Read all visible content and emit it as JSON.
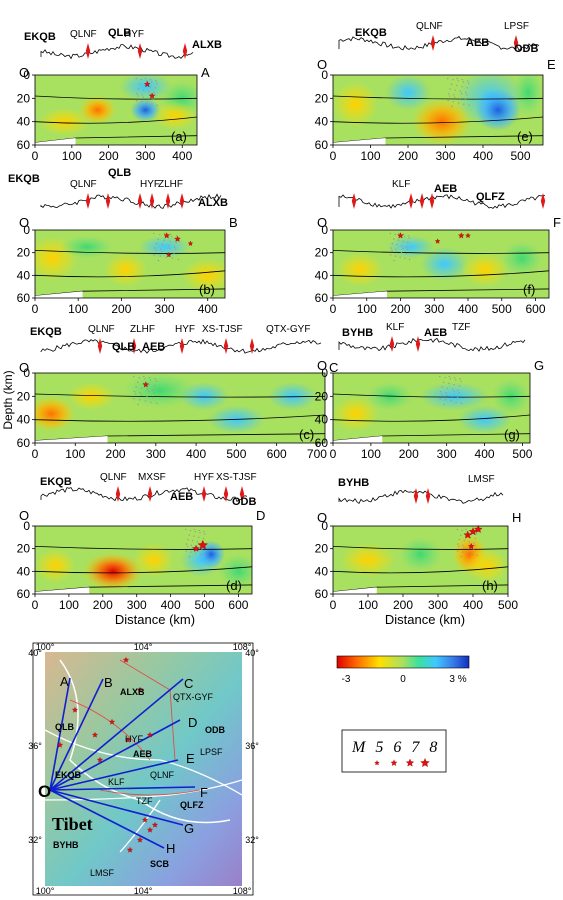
{
  "y_axis_label": "Depth (km)",
  "x_axis_label": "Distance (km)",
  "origin_label": "O",
  "depth_ticks": [
    "0",
    "20",
    "40",
    "60"
  ],
  "panels": [
    {
      "id": "a",
      "end": "A",
      "label": "(a)",
      "x_ticks": [
        "0",
        "100",
        "200",
        "300",
        "400"
      ],
      "faults": [
        "QLNF",
        "HYF"
      ],
      "blocks": [
        "EKQB",
        "QLB",
        "ALXB"
      ]
    },
    {
      "id": "b",
      "end": "B",
      "label": "(b)",
      "x_ticks": [
        "0",
        "100",
        "200",
        "300",
        "400"
      ],
      "faults": [
        "QLNF",
        "HYF",
        "ZLHF"
      ],
      "blocks": [
        "EKQB",
        "QLB",
        "ALXB"
      ]
    },
    {
      "id": "c",
      "end": "C",
      "label": "(c)",
      "x_ticks": [
        "0",
        "100",
        "200",
        "300",
        "400",
        "500",
        "600",
        "700"
      ],
      "faults": [
        "QLNF",
        "ZLHF",
        "HYF",
        "XS-TJSF",
        "QTX-GYF"
      ],
      "blocks": [
        "EKQB",
        "QLB",
        "AEB"
      ]
    },
    {
      "id": "d",
      "end": "D",
      "label": "(d)",
      "x_ticks": [
        "0",
        "100",
        "200",
        "300",
        "400",
        "500",
        "600"
      ],
      "faults": [
        "QLNF",
        "MXSF",
        "HYF",
        "XS-TJSF"
      ],
      "blocks": [
        "EKQB",
        "AEB",
        "ODB"
      ]
    },
    {
      "id": "e",
      "end": "E",
      "label": "(e)",
      "x_ticks": [
        "0",
        "100",
        "200",
        "300",
        "400",
        "500"
      ],
      "faults": [
        "QLNF",
        "LPSF"
      ],
      "blocks": [
        "EKQB",
        "AEB",
        "ODB"
      ]
    },
    {
      "id": "f",
      "end": "F",
      "label": "(f)",
      "x_ticks": [
        "0",
        "100",
        "200",
        "300",
        "400",
        "500",
        "600"
      ],
      "faults": [
        "KLF"
      ],
      "blocks": [
        "AEB",
        "QLFZ"
      ]
    },
    {
      "id": "g",
      "end": "G",
      "label": "(g)",
      "x_ticks": [
        "0",
        "100",
        "200",
        "300",
        "400",
        "500"
      ],
      "faults": [
        "KLF",
        "TZF"
      ],
      "blocks": [
        "BYHB",
        "AEB"
      ]
    },
    {
      "id": "h",
      "end": "H",
      "label": "(h)",
      "x_ticks": [
        "0",
        "100",
        "200",
        "300",
        "400",
        "500"
      ],
      "faults": [
        "LMSF"
      ],
      "blocks": [
        "BYHB"
      ]
    }
  ],
  "colorbar": {
    "ticks": [
      "-3",
      "0",
      "3 %"
    ]
  },
  "legend": {
    "title": "M 5 6 7 8"
  },
  "map": {
    "lon_ticks": [
      "100°",
      "104°",
      "108°"
    ],
    "lat_ticks": [
      "40°",
      "36°",
      "32°"
    ],
    "profile_ends": [
      "A",
      "B",
      "C",
      "D",
      "E",
      "F",
      "G",
      "H"
    ],
    "blocks": [
      "ALXB",
      "QLB",
      "AEB",
      "ODB",
      "EKQB",
      "QLFZ",
      "BYHB",
      "SCB"
    ],
    "region_label": "Tibet",
    "faults": [
      "HYF",
      "QTX-GYF",
      "QLNF",
      "LPSF",
      "KLF",
      "TZF",
      "LMSF"
    ],
    "origin": "O"
  }
}
